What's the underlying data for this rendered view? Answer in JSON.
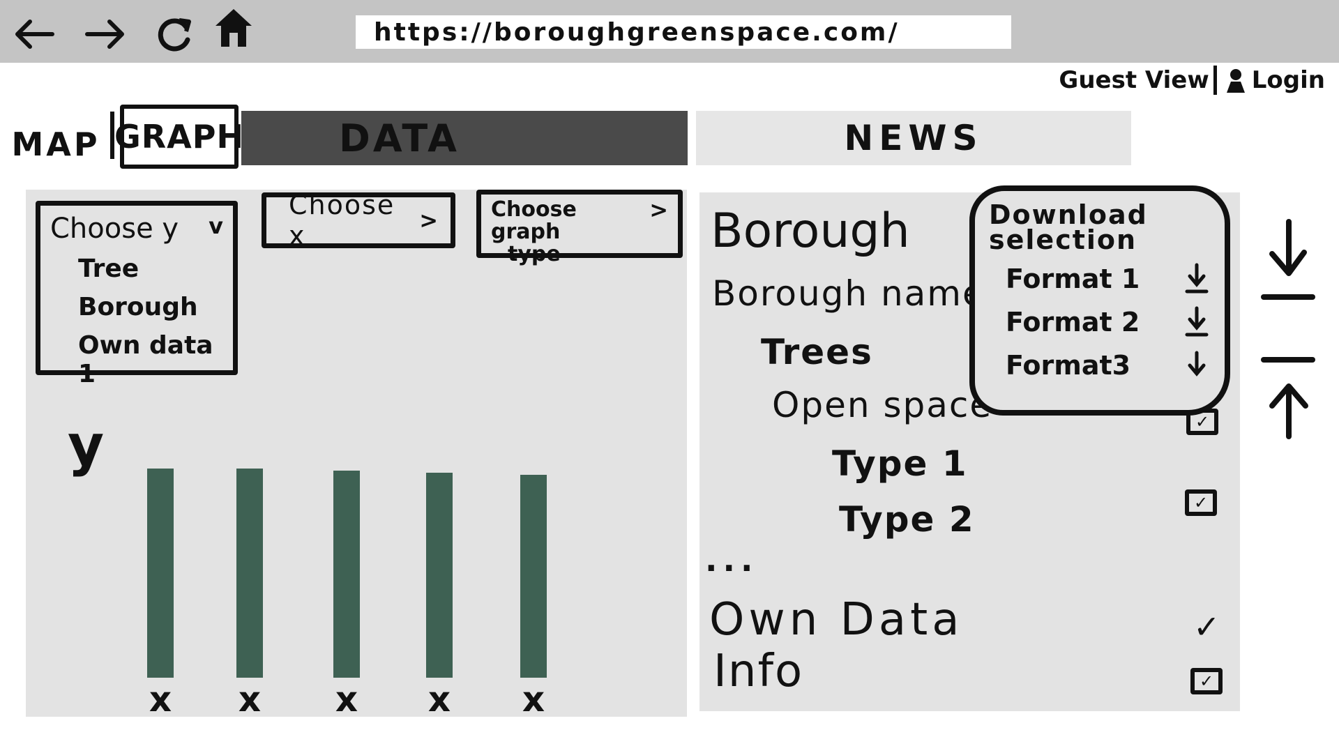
{
  "browser": {
    "url": "https://boroughgreenspace.com/",
    "back_icon": "arrow-left-icon",
    "forward_icon": "arrow-right-icon",
    "reload_icon": "reload-icon",
    "home_icon": "home-icon"
  },
  "account": {
    "guest_label": "Guest View",
    "login_label": "Login"
  },
  "tabs": {
    "map": "MAP",
    "graph": "GRAPH",
    "data": "DATA",
    "news": "NEWS"
  },
  "graph_controls": {
    "y_label": "Choose y",
    "y_chevron": "v",
    "y_options": [
      "Tree",
      "Borough",
      "Own data 1"
    ],
    "x_label": "Choose x",
    "x_chevron": ">",
    "type_label_line1": "Choose graph",
    "type_label_line2": "type",
    "type_chevron": ">"
  },
  "chart_data": {
    "type": "bar",
    "categories": [
      "x",
      "x",
      "x",
      "x",
      "x"
    ],
    "values": [
      1.0,
      1.0,
      0.99,
      0.98,
      0.97
    ],
    "ylabel": "y",
    "bar_color": "#3e6153"
  },
  "data_panel": {
    "title": "Borough",
    "borough_name": "Borough name",
    "trees": "Trees",
    "open_space": "Open space",
    "type1": "Type 1",
    "type2": "Type 2",
    "more": "...",
    "own_data": "Own Data",
    "info": "Info"
  },
  "download": {
    "title_line1": "Download",
    "title_line2": "selection",
    "formats": [
      "Format 1",
      "Format 2",
      "Format3"
    ]
  },
  "colors": {
    "browser_bar": "#c4c4c4",
    "panel": "#e3e3e3",
    "data_tab": "#4a4a4a",
    "news_tab": "#e6e6e6",
    "bar": "#3e6153"
  }
}
